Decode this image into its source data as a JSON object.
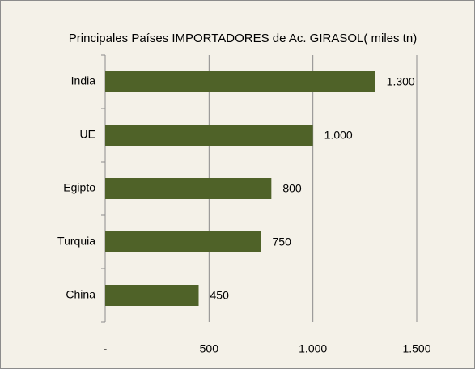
{
  "chart_data": {
    "type": "bar",
    "orientation": "horizontal",
    "title": "Principales Países IMPORTADORES de  Ac. GIRASOL( miles tn)",
    "categories": [
      "India",
      "UE",
      "Egipto",
      "Turquia",
      "China"
    ],
    "values": [
      1300,
      1000,
      800,
      750,
      450
    ],
    "value_labels": [
      "1.300",
      "1.000",
      "800",
      "750",
      "450"
    ],
    "color": "#4f6228",
    "xlim": [
      0,
      1500
    ],
    "xticks": [
      {
        "value": 0,
        "label": "-"
      },
      500,
      {
        "value": 1000,
        "label": "1.000"
      },
      {
        "value": 1500,
        "label": "1.500"
      }
    ],
    "grid": true
  }
}
